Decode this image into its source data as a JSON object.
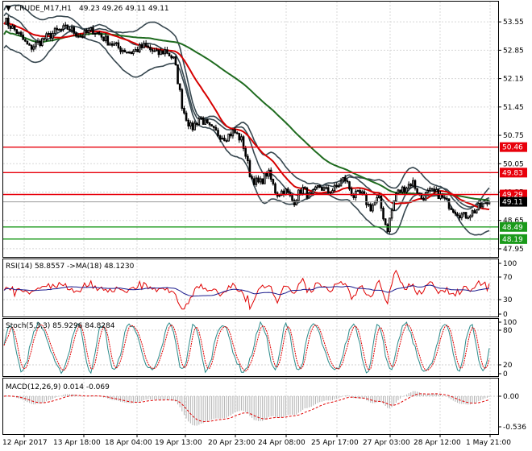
{
  "header": {
    "symbol": "CRUDE_M17,H1",
    "ohlc": "49.23 49.26 49.11 49.11"
  },
  "price_axis": {
    "ticks": [
      "53.55",
      "52.85",
      "52.15",
      "51.45",
      "50.75",
      "50.05",
      "49.35",
      "48.65",
      "47.95"
    ],
    "ylim": [
      47.75,
      54.05
    ]
  },
  "price_labels": [
    {
      "value": 50.46,
      "text": "50.46",
      "color": "#e8000b"
    },
    {
      "value": 49.83,
      "text": "49.83",
      "color": "#e8000b"
    },
    {
      "value": 49.29,
      "text": "49.29",
      "color": "#e8000b"
    },
    {
      "value": 49.11,
      "text": "49.11",
      "color": "#000000"
    },
    {
      "value": 48.49,
      "text": "48.49",
      "color": "#1a9a1a"
    },
    {
      "value": 48.19,
      "text": "48.19",
      "color": "#1a9a1a"
    }
  ],
  "levels": [
    {
      "value": 50.46,
      "color": "#e8000b"
    },
    {
      "value": 49.83,
      "color": "#e8000b"
    },
    {
      "value": 49.29,
      "color": "#e8000b"
    },
    {
      "value": 48.49,
      "color": "#1a9a1a"
    },
    {
      "value": 48.19,
      "color": "#1a9a1a"
    }
  ],
  "rsi": {
    "label": "RSI(14) 58.8557 ->MA(18) 48.1230",
    "ticks": [
      "100",
      "70",
      "30",
      "0"
    ]
  },
  "stoch": {
    "label": "Stoch(5,3,3) 85.9296 84.8284",
    "ticks": [
      "100",
      "80",
      "20",
      "0"
    ]
  },
  "macd": {
    "label": "MACD(12,26,9) 0.014 -0.069",
    "ticks": [
      "0.00",
      "-0.536"
    ]
  },
  "time_axis": [
    "12 Apr 2017",
    "13 Apr 18:00",
    "18 Apr 04:00",
    "19 Apr 13:00",
    "20 Apr 23:00",
    "24 Apr 08:00",
    "25 Apr 17:00",
    "27 Apr 03:00",
    "28 Apr 12:00",
    "1 May 21:00"
  ],
  "chart_data": {
    "type": "candlestick",
    "symbol": "CRUDE_M17",
    "timeframe": "H1",
    "last": {
      "open": 49.23,
      "high": 49.26,
      "low": 49.11,
      "close": 49.11
    },
    "close_path": [
      [
        0,
        53.6
      ],
      [
        3,
        53.3
      ],
      [
        6,
        52.9
      ],
      [
        9,
        53.1
      ],
      [
        12,
        53.3
      ],
      [
        15,
        53.4
      ],
      [
        18,
        53.2
      ],
      [
        21,
        53.35
      ],
      [
        24,
        53.1
      ],
      [
        27,
        52.9
      ],
      [
        30,
        52.8
      ],
      [
        33,
        52.95
      ],
      [
        36,
        52.75
      ],
      [
        38,
        52.85
      ],
      [
        40,
        52.6
      ],
      [
        42,
        51.4
      ],
      [
        44,
        50.9
      ],
      [
        46,
        51.2
      ],
      [
        48,
        50.95
      ],
      [
        50,
        50.8
      ],
      [
        52,
        50.7
      ],
      [
        54,
        50.85
      ],
      [
        56,
        50.6
      ],
      [
        58,
        49.7
      ],
      [
        60,
        49.55
      ],
      [
        62,
        49.85
      ],
      [
        64,
        49.3
      ],
      [
        66,
        49.4
      ],
      [
        68,
        49.1
      ],
      [
        70,
        49.45
      ],
      [
        72,
        49.2
      ],
      [
        74,
        49.5
      ],
      [
        76,
        49.35
      ],
      [
        78,
        49.45
      ],
      [
        80,
        49.7
      ],
      [
        82,
        49.25
      ],
      [
        84,
        49.3
      ],
      [
        86,
        48.95
      ],
      [
        88,
        49.2
      ],
      [
        90,
        48.4
      ],
      [
        92,
        49.3
      ],
      [
        94,
        49.45
      ],
      [
        96,
        49.6
      ],
      [
        98,
        49.2
      ],
      [
        100,
        49.35
      ],
      [
        102,
        49.3
      ],
      [
        104,
        49.1
      ],
      [
        106,
        48.9
      ],
      [
        108,
        48.75
      ],
      [
        110,
        48.85
      ],
      [
        112,
        49.0
      ],
      [
        114,
        49.11
      ]
    ],
    "ylim": [
      47.75,
      54.05
    ]
  }
}
